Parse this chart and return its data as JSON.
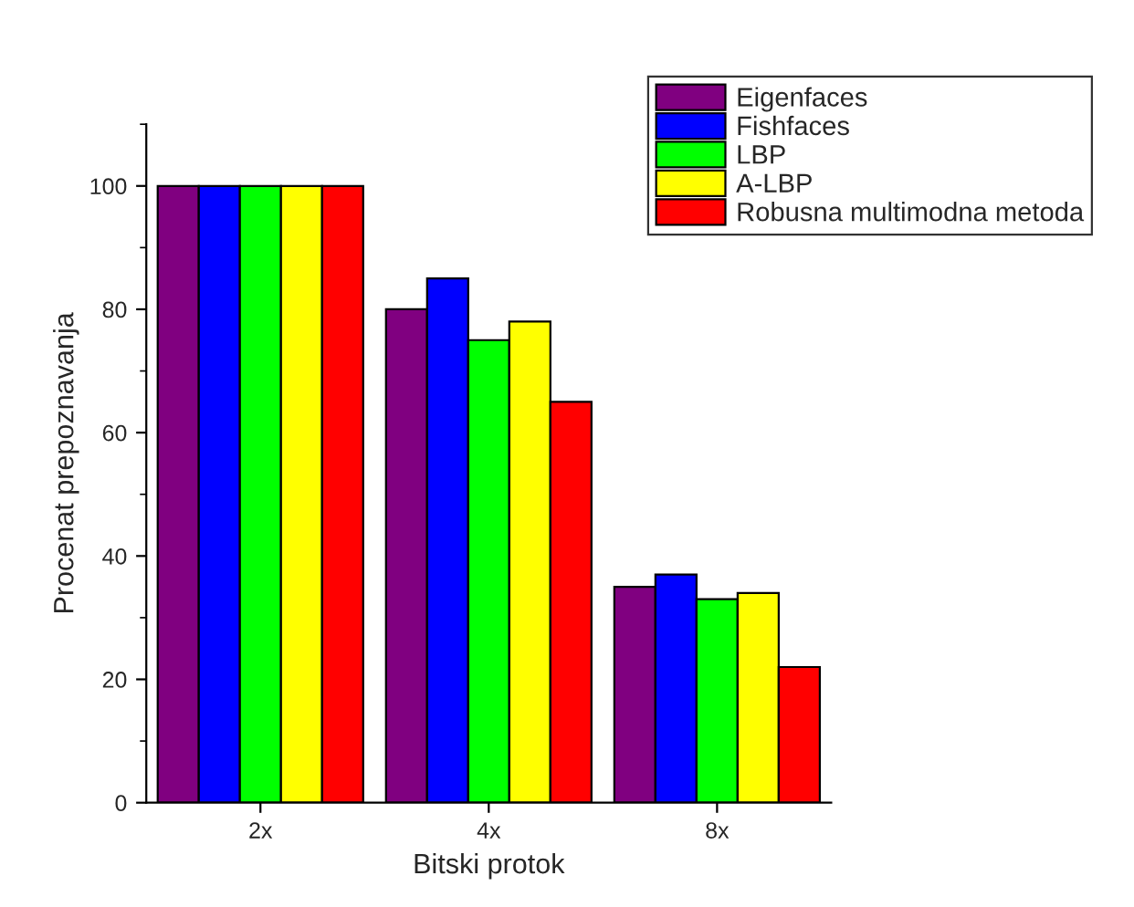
{
  "chart_data": {
    "type": "bar",
    "xlabel": "Bitski protok",
    "ylabel": "Procenat prepoznavanja",
    "categories": [
      "2x",
      "4x",
      "8x"
    ],
    "series": [
      {
        "name": "Eigenfaces",
        "color": "#800080",
        "values": [
          100,
          80,
          35
        ]
      },
      {
        "name": "Fishfaces",
        "color": "#0000ff",
        "values": [
          100,
          85,
          37
        ]
      },
      {
        "name": "LBP",
        "color": "#00ff00",
        "values": [
          100,
          75,
          33
        ]
      },
      {
        "name": "A-LBP",
        "color": "#ffff00",
        "values": [
          100,
          78,
          34
        ]
      },
      {
        "name": "Robusna multimodna metoda",
        "color": "#ff0000",
        "values": [
          100,
          65,
          22
        ]
      }
    ],
    "ylim": [
      0,
      110
    ],
    "yticks": [
      0,
      20,
      40,
      60,
      80,
      100
    ],
    "grid": false,
    "legend": "top right"
  }
}
